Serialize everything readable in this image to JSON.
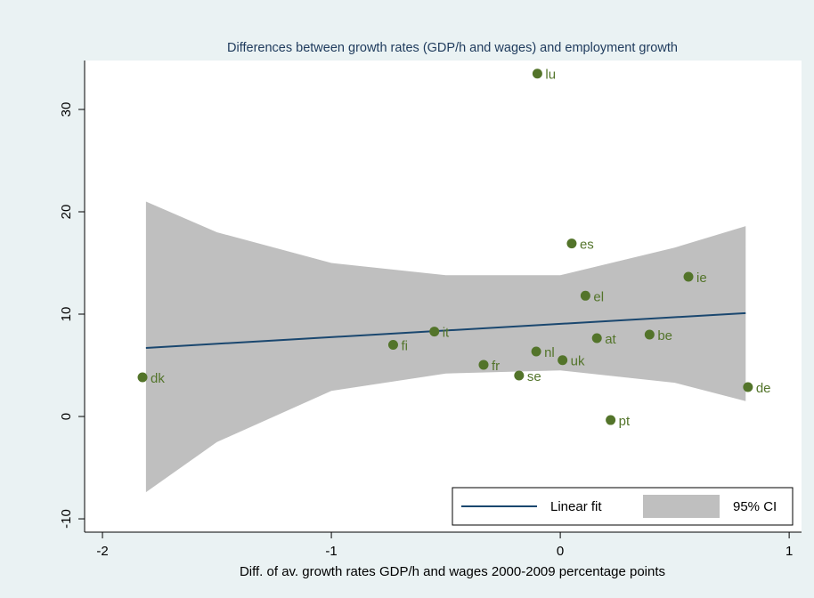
{
  "chart_data": {
    "type": "scatter",
    "title": "Differences between growth rates (GDP/h and wages) and employment growth",
    "x_label": "Diff. of av. growth rates GDP/h and wages 2000-2009 percentage points",
    "xlim": [
      -2.078,
      1.054
    ],
    "xticks": [
      -2,
      -1,
      0,
      1
    ],
    "ylim": [
      -11.3,
      34.78
    ],
    "yticks": [
      -10,
      0,
      10,
      20,
      30
    ],
    "points": {
      "color": "#53742a",
      "labels": [
        "lu",
        "es",
        "ie",
        "el",
        "it",
        "fi",
        "at",
        "be",
        "nl",
        "uk",
        "fr",
        "se",
        "dk",
        "de",
        "pt"
      ],
      "x": [
        -0.1,
        0.05,
        0.56,
        0.11,
        -0.55,
        -0.73,
        0.16,
        0.39,
        -0.105,
        0.01,
        -0.335,
        -0.18,
        -1.825,
        0.82,
        0.22
      ],
      "y": [
        33.5,
        16.9,
        13.65,
        11.8,
        8.3,
        7.0,
        7.65,
        8.0,
        6.35,
        5.5,
        5.05,
        4.0,
        3.83,
        2.87,
        -0.35
      ]
    },
    "fit": {
      "name": "Linear fit",
      "color": "#1a476f",
      "x": [
        -1.81,
        0.81
      ],
      "y": [
        6.7,
        10.1
      ]
    },
    "ci": {
      "name": "95% CI",
      "color": "#bfbfbf",
      "x": [
        -1.81,
        -1.5,
        -1,
        -0.5,
        0,
        0.5,
        0.81
      ],
      "upper": [
        21,
        18,
        15,
        13.8,
        13.8,
        16.5,
        18.6
      ],
      "lower": [
        -7.4,
        -2.5,
        2.5,
        4.2,
        4.5,
        3.3,
        1.5
      ]
    }
  }
}
